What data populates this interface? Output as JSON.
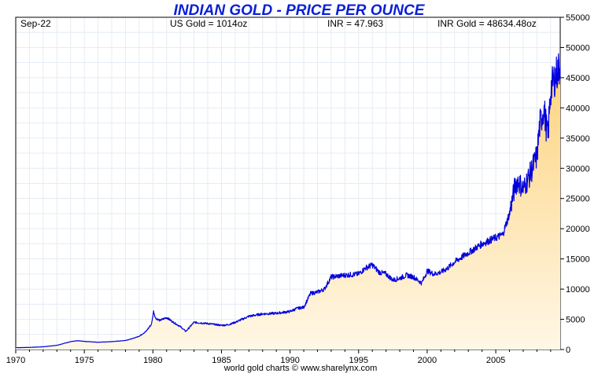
{
  "chart_data": {
    "type": "area",
    "title": "INDIAN GOLD - PRICE PER OUNCE",
    "info": {
      "date": "Sep-22",
      "us_gold": "US Gold = 1014oz",
      "inr_rate": "INR = 47.963",
      "inr_gold": "INR Gold = 48634.48oz"
    },
    "footer": "world gold charts © www.sharelynx.com",
    "xlim": [
      1970,
      2009.7
    ],
    "ylim": [
      0,
      55000
    ],
    "x_ticks": [
      1970,
      1975,
      1980,
      1985,
      1990,
      1995,
      2000,
      2005
    ],
    "x_tick_labels": [
      "1970",
      "1975",
      "1980",
      "1985",
      "1990",
      "1995",
      "2000",
      "2005"
    ],
    "y_ticks": [
      0,
      5000,
      10000,
      15000,
      20000,
      25000,
      30000,
      35000,
      40000,
      45000,
      50000,
      55000
    ],
    "y_tick_labels": [
      "0",
      "5000",
      "10000",
      "15000",
      "20000",
      "25000",
      "30000",
      "35000",
      "40000",
      "45000",
      "50000",
      "55000"
    ],
    "grid": true,
    "colors": {
      "line": "#0000dd",
      "title": "#0a1fd6",
      "fill_top": "#fdd27a",
      "fill_bottom": "#fff7e6",
      "grid": "#e4ecf4"
    },
    "series": [
      {
        "x": [
          1970,
          1971,
          1972,
          1973,
          1973.5,
          1974,
          1974.5,
          1975,
          1976,
          1977,
          1978,
          1978.5,
          1979,
          1979.5,
          1979.9,
          1980.05,
          1980.2,
          1980.5,
          1981,
          1981.5,
          1982,
          1982.4,
          1983,
          1984,
          1985,
          1985.5,
          1986,
          1987,
          1988,
          1989,
          1990,
          1990.5,
          1991,
          1991.5,
          1992,
          1992.5,
          1993,
          1994,
          1995,
          1995.5,
          1996,
          1996.5,
          1997,
          1997.5,
          1998,
          1998.5,
          1999,
          1999.6,
          2000,
          2000.5,
          2001,
          2001.5,
          2002,
          2003,
          2004,
          2005,
          2005.5,
          2006,
          2006.4,
          2006.6,
          2007,
          2007.5,
          2008,
          2008.2,
          2008.5,
          2008.8,
          2009,
          2009.3,
          2009.7
        ],
        "y": [
          300,
          350,
          450,
          700,
          1000,
          1300,
          1450,
          1350,
          1200,
          1300,
          1500,
          1800,
          2200,
          3000,
          4200,
          6300,
          5200,
          4800,
          5300,
          4500,
          3800,
          3000,
          4500,
          4300,
          4000,
          4100,
          4500,
          5500,
          5900,
          6000,
          6300,
          6800,
          7000,
          9300,
          9500,
          10000,
          12000,
          12300,
          12500,
          13500,
          14000,
          12800,
          12500,
          11500,
          11800,
          12300,
          12000,
          11000,
          13000,
          12500,
          12800,
          13500,
          14500,
          16000,
          17500,
          18500,
          19000,
          22500,
          27000,
          28000,
          26500,
          29000,
          32000,
          37000,
          40000,
          35000,
          43000,
          45000,
          47000
        ]
      }
    ]
  }
}
